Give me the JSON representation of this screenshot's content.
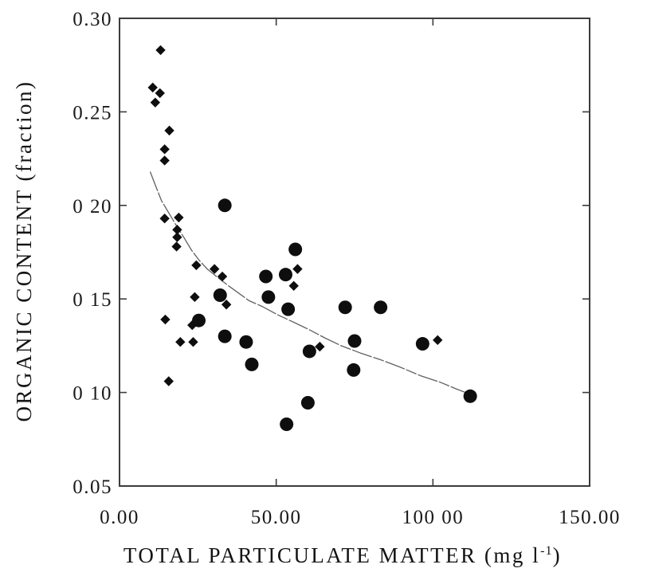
{
  "figure": {
    "xlabel_main": "TOTAL PARTICULATE MATTER (mg l",
    "xlabel_sup": "-1",
    "xlabel_close": ")",
    "ylabel": "ORGANIC CONTENT (fraction)"
  },
  "colors": {
    "background": "#ffffff",
    "frame": "#3c3c3c",
    "text": "#1a1a1a",
    "marker": "#0e0e0e",
    "curve": "#606060"
  },
  "chart_data": {
    "type": "scatter",
    "title": "",
    "xlabel": "TOTAL PARTICULATE MATTER (mg l⁻¹)",
    "ylabel": "ORGANIC CONTENT (fraction)",
    "xlim": [
      0,
      150
    ],
    "ylim": [
      0.05,
      0.3
    ],
    "grid": false,
    "legend": "none",
    "x_ticks": [
      {
        "value": 0,
        "label": "0.00",
        "mark": false
      },
      {
        "value": 50,
        "label": "50.00",
        "mark": true
      },
      {
        "value": 100,
        "label": "100 00",
        "mark": true
      },
      {
        "value": 150,
        "label": "150.00",
        "mark": false
      }
    ],
    "y_ticks": [
      {
        "value": 0.3,
        "label": "0.30",
        "mark": false
      },
      {
        "value": 0.25,
        "label": "0.25",
        "mark": true
      },
      {
        "value": 0.2,
        "label": "0 20",
        "mark": true
      },
      {
        "value": 0.15,
        "label": "0 15",
        "mark": true
      },
      {
        "value": 0.1,
        "label": "0 10",
        "mark": true
      },
      {
        "value": 0.05,
        "label": "0.05",
        "mark": false
      }
    ],
    "series": [
      {
        "name": "diamond-markers",
        "marker": "diamond",
        "color": "#0e0e0e",
        "points": [
          [
            13.1,
            0.283
          ],
          [
            10.6,
            0.263
          ],
          [
            12.9,
            0.26
          ],
          [
            11.4,
            0.255
          ],
          [
            15.9,
            0.24
          ],
          [
            14.4,
            0.23
          ],
          [
            14.4,
            0.224
          ],
          [
            14.4,
            0.193
          ],
          [
            18.9,
            0.1935
          ],
          [
            18.4,
            0.187
          ],
          [
            18.4,
            0.183
          ],
          [
            18.2,
            0.178
          ],
          [
            24.5,
            0.168
          ],
          [
            30.3,
            0.166
          ],
          [
            32.8,
            0.162
          ],
          [
            56.8,
            0.166
          ],
          [
            55.6,
            0.157
          ],
          [
            24.0,
            0.151
          ],
          [
            34.1,
            0.147
          ],
          [
            14.6,
            0.139
          ],
          [
            23.2,
            0.136
          ],
          [
            19.4,
            0.127
          ],
          [
            23.5,
            0.127
          ],
          [
            15.7,
            0.106
          ],
          [
            63.9,
            0.1245
          ],
          [
            101.5,
            0.128
          ]
        ]
      },
      {
        "name": "circle-markers",
        "marker": "circle",
        "color": "#0e0e0e",
        "points": [
          [
            33.6,
            0.2
          ],
          [
            56.1,
            0.1765
          ],
          [
            46.7,
            0.162
          ],
          [
            53.0,
            0.163
          ],
          [
            32.1,
            0.152
          ],
          [
            47.5,
            0.151
          ],
          [
            53.8,
            0.1445
          ],
          [
            72.0,
            0.1455
          ],
          [
            83.3,
            0.1455
          ],
          [
            25.3,
            0.1385
          ],
          [
            33.6,
            0.13
          ],
          [
            40.4,
            0.127
          ],
          [
            42.2,
            0.115
          ],
          [
            60.6,
            0.122
          ],
          [
            75.0,
            0.1275
          ],
          [
            96.7,
            0.126
          ],
          [
            74.7,
            0.112
          ],
          [
            60.1,
            0.0945
          ],
          [
            53.3,
            0.083
          ],
          [
            111.9,
            0.098
          ]
        ]
      }
    ],
    "fit_curve": {
      "color": "#606060",
      "points": [
        [
          9.8,
          0.218
        ],
        [
          11.4,
          0.211
        ],
        [
          13.4,
          0.2025
        ],
        [
          15.7,
          0.196
        ],
        [
          18.2,
          0.189
        ],
        [
          20.5,
          0.183
        ],
        [
          23.0,
          0.176
        ],
        [
          25.5,
          0.1705
        ],
        [
          28.0,
          0.166
        ],
        [
          31.3,
          0.1615
        ],
        [
          34.8,
          0.157
        ],
        [
          38.1,
          0.153
        ],
        [
          41.4,
          0.149
        ],
        [
          45.5,
          0.146
        ],
        [
          50.5,
          0.1415
        ],
        [
          55.6,
          0.1375
        ],
        [
          60.6,
          0.1335
        ],
        [
          65.7,
          0.129
        ],
        [
          70.7,
          0.125
        ],
        [
          77.0,
          0.121
        ],
        [
          83.3,
          0.1175
        ],
        [
          89.6,
          0.1135
        ],
        [
          96.0,
          0.109
        ],
        [
          102.3,
          0.1055
        ],
        [
          107.3,
          0.102
        ],
        [
          111.9,
          0.099
        ]
      ]
    }
  }
}
